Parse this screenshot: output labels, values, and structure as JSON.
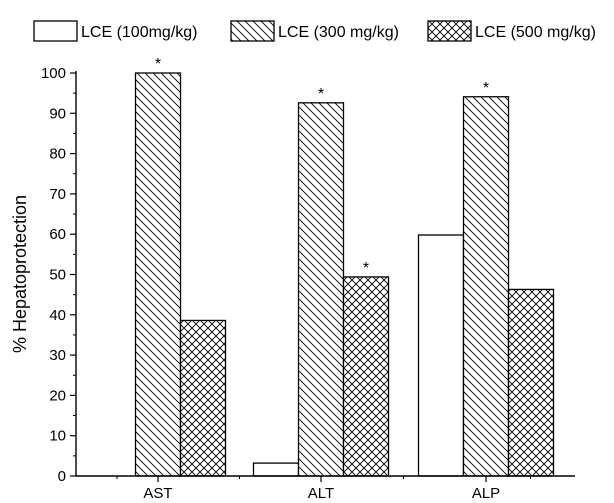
{
  "chart_data": {
    "type": "bar",
    "title": "",
    "xlabel": "",
    "ylabel": "% Hepatoprotection",
    "ylim": [
      0,
      100
    ],
    "y_ticks": [
      "0",
      "10",
      "20",
      "30",
      "40",
      "50",
      "60",
      "70",
      "80",
      "90",
      "100"
    ],
    "categories": [
      "AST",
      "ALT",
      "ALP"
    ],
    "series": [
      {
        "name": "LCE (100mg/kg)",
        "pattern": "none",
        "values": [
          0,
          3.2,
          59.8
        ],
        "significance": [
          "",
          "",
          ""
        ]
      },
      {
        "name": "LCE (300 mg/kg)",
        "pattern": "diagonal-hatch",
        "values": [
          100,
          92.6,
          94.1
        ],
        "significance": [
          "*",
          "*",
          "*"
        ]
      },
      {
        "name": "LCE (500 mg/kg)",
        "pattern": "cross-hatch",
        "values": [
          38.6,
          49.4,
          46.3
        ],
        "significance": [
          "",
          "*",
          ""
        ]
      }
    ],
    "legend_position": "top",
    "grid": false,
    "colors": {
      "bar_fill": "#ffffff",
      "stroke": "#000000"
    }
  }
}
